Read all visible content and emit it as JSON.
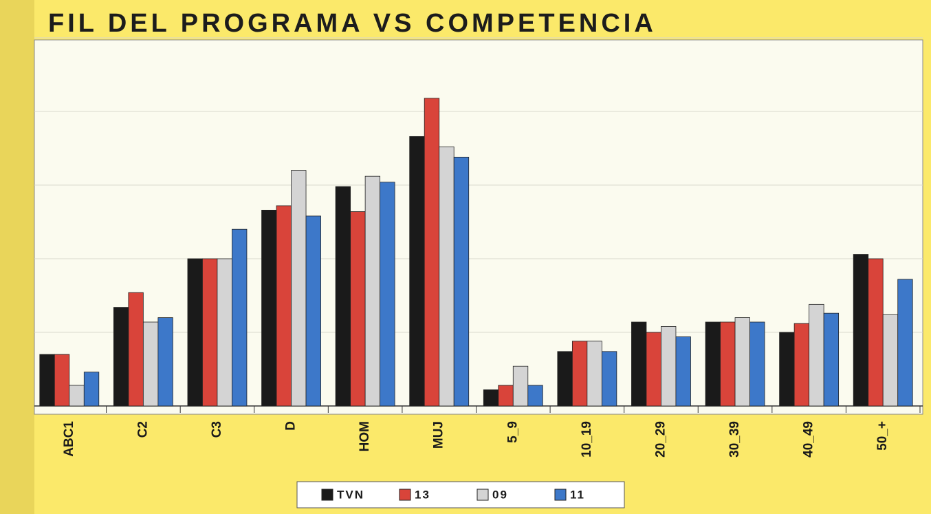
{
  "chart_data": {
    "type": "bar",
    "title": "FIL DEL PROGRAMA VS COMPETENCIA",
    "categories": [
      "ABC1",
      "C2",
      "C3",
      "D",
      "HOM",
      "MUJ",
      "5_9",
      "10_19",
      "20_29",
      "30_39",
      "40_49",
      "50_+"
    ],
    "series": [
      {
        "name": "TVN",
        "color": "#1a1a1a",
        "values": [
          3.5,
          6.7,
          10.0,
          13.3,
          14.9,
          18.3,
          1.1,
          3.7,
          5.7,
          5.7,
          5.0,
          10.3
        ]
      },
      {
        "name": "13",
        "color": "#d9443a",
        "values": [
          3.5,
          7.7,
          10.0,
          13.6,
          13.2,
          20.9,
          1.4,
          4.4,
          5.0,
          5.7,
          5.6,
          10.0
        ]
      },
      {
        "name": "09",
        "color": "#d4d4d4",
        "values": [
          1.4,
          5.7,
          10.0,
          16.0,
          15.6,
          17.6,
          2.7,
          4.4,
          5.4,
          6.0,
          6.9,
          6.2
        ]
      },
      {
        "name": "11",
        "color": "#3d78c9",
        "values": [
          2.3,
          6.0,
          12.0,
          12.9,
          15.2,
          16.9,
          1.4,
          3.7,
          4.7,
          5.7,
          6.3,
          8.6
        ]
      }
    ],
    "ylim": [
      0,
      25
    ],
    "yticks": [
      0,
      5,
      10,
      15,
      20,
      25
    ],
    "grid": true
  }
}
